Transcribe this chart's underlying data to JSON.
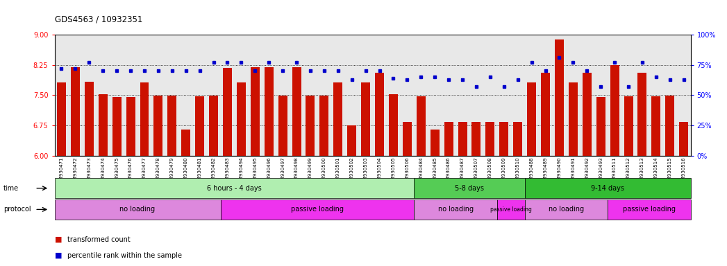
{
  "title": "GDS4563 / 10932351",
  "samples": [
    "GSM930471",
    "GSM930472",
    "GSM930473",
    "GSM930474",
    "GSM930475",
    "GSM930476",
    "GSM930477",
    "GSM930478",
    "GSM930479",
    "GSM930480",
    "GSM930481",
    "GSM930482",
    "GSM930483",
    "GSM930494",
    "GSM930495",
    "GSM930496",
    "GSM930497",
    "GSM930498",
    "GSM930499",
    "GSM930500",
    "GSM930501",
    "GSM930502",
    "GSM930503",
    "GSM930504",
    "GSM930505",
    "GSM930506",
    "GSM930484",
    "GSM930485",
    "GSM930486",
    "GSM930487",
    "GSM930507",
    "GSM930508",
    "GSM930509",
    "GSM930510",
    "GSM930488",
    "GSM930489",
    "GSM930490",
    "GSM930491",
    "GSM930492",
    "GSM930493",
    "GSM930511",
    "GSM930512",
    "GSM930513",
    "GSM930514",
    "GSM930515",
    "GSM930516"
  ],
  "bar_values": [
    7.82,
    8.19,
    7.83,
    7.52,
    7.45,
    7.46,
    7.82,
    7.49,
    7.48,
    6.65,
    7.47,
    7.48,
    8.18,
    7.82,
    8.19,
    8.19,
    7.48,
    8.19,
    7.48,
    7.48,
    7.82,
    6.75,
    7.82,
    8.06,
    7.52,
    6.83,
    7.47,
    6.65,
    6.83,
    6.83,
    6.83,
    6.83,
    6.83,
    6.83,
    7.82,
    8.06,
    8.87,
    7.82,
    8.06,
    7.45,
    8.25,
    7.47,
    8.06,
    7.47,
    7.48,
    6.83
  ],
  "percentile_values": [
    72,
    72,
    77,
    70,
    70,
    70,
    70,
    70,
    70,
    70,
    70,
    77,
    77,
    77,
    70,
    77,
    70,
    77,
    70,
    70,
    70,
    63,
    70,
    70,
    64,
    63,
    65,
    65,
    63,
    63,
    57,
    65,
    57,
    63,
    77,
    70,
    81,
    77,
    70,
    57,
    77,
    57,
    77,
    65,
    63,
    63
  ],
  "ylim_left": [
    6,
    9
  ],
  "ylim_right": [
    0,
    100
  ],
  "yticks_left": [
    6,
    6.75,
    7.5,
    8.25,
    9
  ],
  "yticks_right": [
    0,
    25,
    50,
    75,
    100
  ],
  "bar_color": "#cc1100",
  "dot_color": "#0000cc",
  "time_groups": [
    {
      "label": "6 hours - 4 days",
      "start": 0,
      "end": 26,
      "color": "#b0eeb0"
    },
    {
      "label": "5-8 days",
      "start": 26,
      "end": 34,
      "color": "#55cc55"
    },
    {
      "label": "9-14 days",
      "start": 34,
      "end": 46,
      "color": "#33bb33"
    }
  ],
  "protocol_groups": [
    {
      "label": "no loading",
      "start": 0,
      "end": 12,
      "color": "#dd88dd"
    },
    {
      "label": "passive loading",
      "start": 12,
      "end": 26,
      "color": "#ee33ee"
    },
    {
      "label": "no loading",
      "start": 26,
      "end": 32,
      "color": "#dd88dd"
    },
    {
      "label": "passive loading",
      "start": 32,
      "end": 34,
      "color": "#ee33ee"
    },
    {
      "label": "no loading",
      "start": 34,
      "end": 40,
      "color": "#dd88dd"
    },
    {
      "label": "passive loading",
      "start": 40,
      "end": 46,
      "color": "#ee33ee"
    }
  ],
  "legend_bar_label": "transformed count",
  "legend_dot_label": "percentile rank within the sample"
}
